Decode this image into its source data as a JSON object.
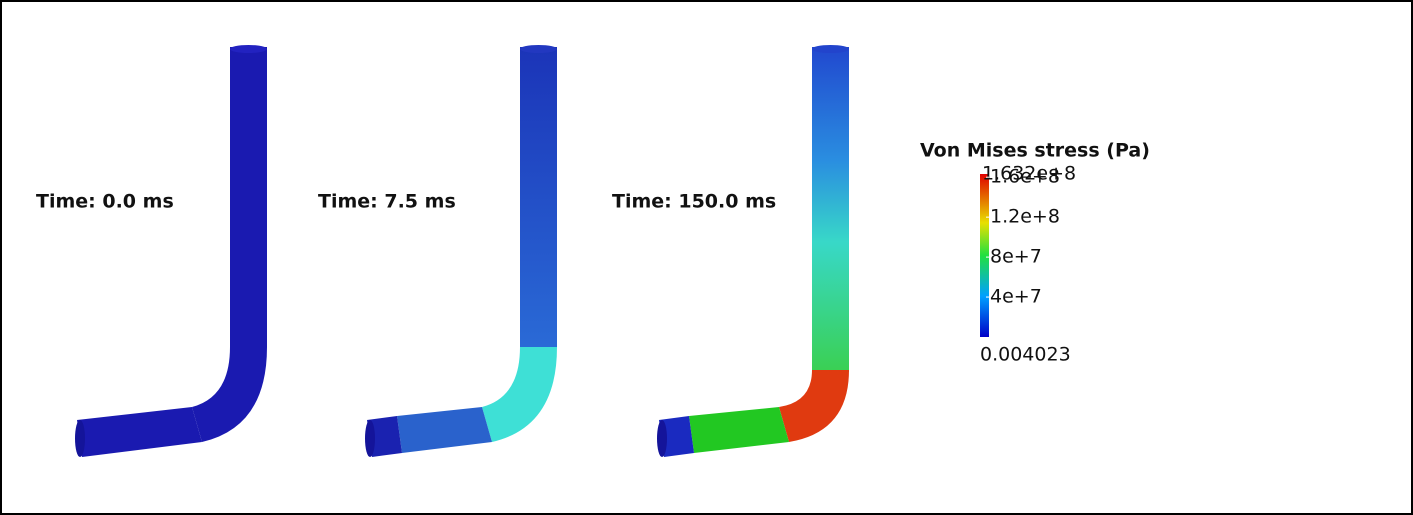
{
  "panels": [
    {
      "label": "Time: 0.0 ms"
    },
    {
      "label": "Time: 7.5 ms"
    },
    {
      "label": "Time: 150.0 ms"
    }
  ],
  "colorbar": {
    "title": "Von Mises stress (Pa)",
    "min": {
      "value": 0.004023,
      "label": "0.004023"
    },
    "max": {
      "value": 163200000,
      "label": "1.632e+8"
    },
    "ticks": [
      {
        "value": 40000000,
        "label": "4e+7"
      },
      {
        "value": 80000000,
        "label": "8e+7"
      },
      {
        "value": 120000000,
        "label": "1.2e+8"
      },
      {
        "value": 160000000,
        "label": "1.6e+8"
      }
    ]
  }
}
